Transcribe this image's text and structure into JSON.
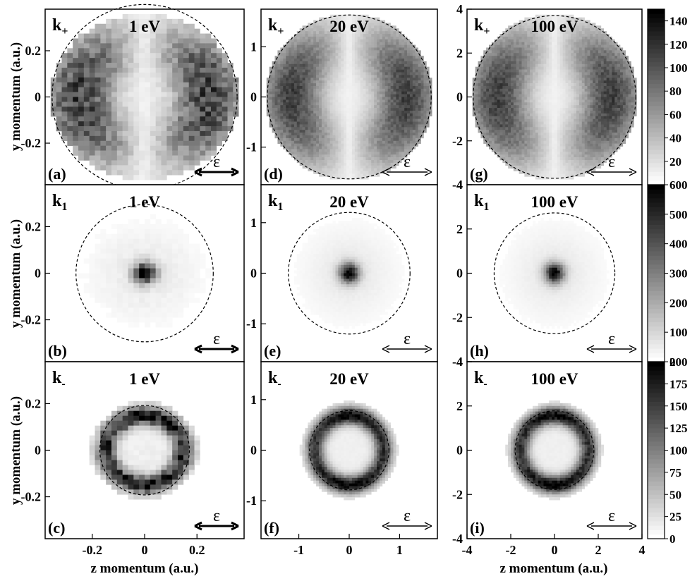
{
  "chart_data": {
    "type": "heatmap",
    "xlabel": "z momentum (a.u.)",
    "ylabel": "y momentum  (a.u.)",
    "polarization_label": "ε",
    "columns": [
      {
        "energy": "1 eV",
        "range": [
          -0.38,
          0.38
        ],
        "ticks": [
          -0.2,
          0,
          0.2
        ],
        "tick_labels": [
          "-0.2",
          "0",
          "0.2"
        ]
      },
      {
        "energy": "20 eV",
        "range": [
          -1.75,
          1.75
        ],
        "ticks": [
          -1,
          0,
          1
        ],
        "tick_labels": [
          "-1",
          "0",
          "1"
        ]
      },
      {
        "energy": "100 eV",
        "range": [
          -4,
          4
        ],
        "ticks": [
          -4,
          -2,
          0,
          2,
          4
        ],
        "tick_labels": [
          "-4",
          "-2",
          "0",
          "2",
          "4"
        ]
      }
    ],
    "rows": [
      {
        "k_main": "k",
        "k_sub": "+",
        "pattern": "dipole",
        "circle_radius_fraction": 0.93,
        "colorbar": {
          "range": [
            0,
            150
          ],
          "ticks": [
            20,
            40,
            60,
            80,
            100,
            120,
            140
          ],
          "tick_labels": [
            "20",
            "40",
            "60",
            "80",
            "100",
            "120",
            "140"
          ]
        }
      },
      {
        "k_main": "k",
        "k_sub": "1",
        "pattern": "central",
        "circle_radius_fraction": 0.69,
        "colorbar": {
          "range": [
            0,
            600
          ],
          "ticks": [
            0,
            100,
            200,
            300,
            400,
            500,
            600
          ],
          "tick_labels": [
            "0",
            "100",
            "200",
            "300",
            "400",
            "500",
            "600"
          ]
        }
      },
      {
        "k_main": "k",
        "k_sub": "-",
        "pattern": "ring",
        "circle_radius_fraction": 0.45,
        "colorbar": {
          "range": [
            0,
            200
          ],
          "ticks": [
            0,
            25,
            50,
            75,
            100,
            125,
            150,
            175,
            200
          ],
          "tick_labels": [
            "0",
            "25",
            "50",
            "75",
            "100",
            "125",
            "150",
            "175",
            "200"
          ]
        }
      }
    ],
    "panel_labels": [
      "(a)",
      "(d)",
      "(g)",
      "(b)",
      "(e)",
      "(h)",
      "(c)",
      "(f)",
      "(i)"
    ],
    "colorscale": [
      "#ffffff",
      "#000000"
    ]
  }
}
